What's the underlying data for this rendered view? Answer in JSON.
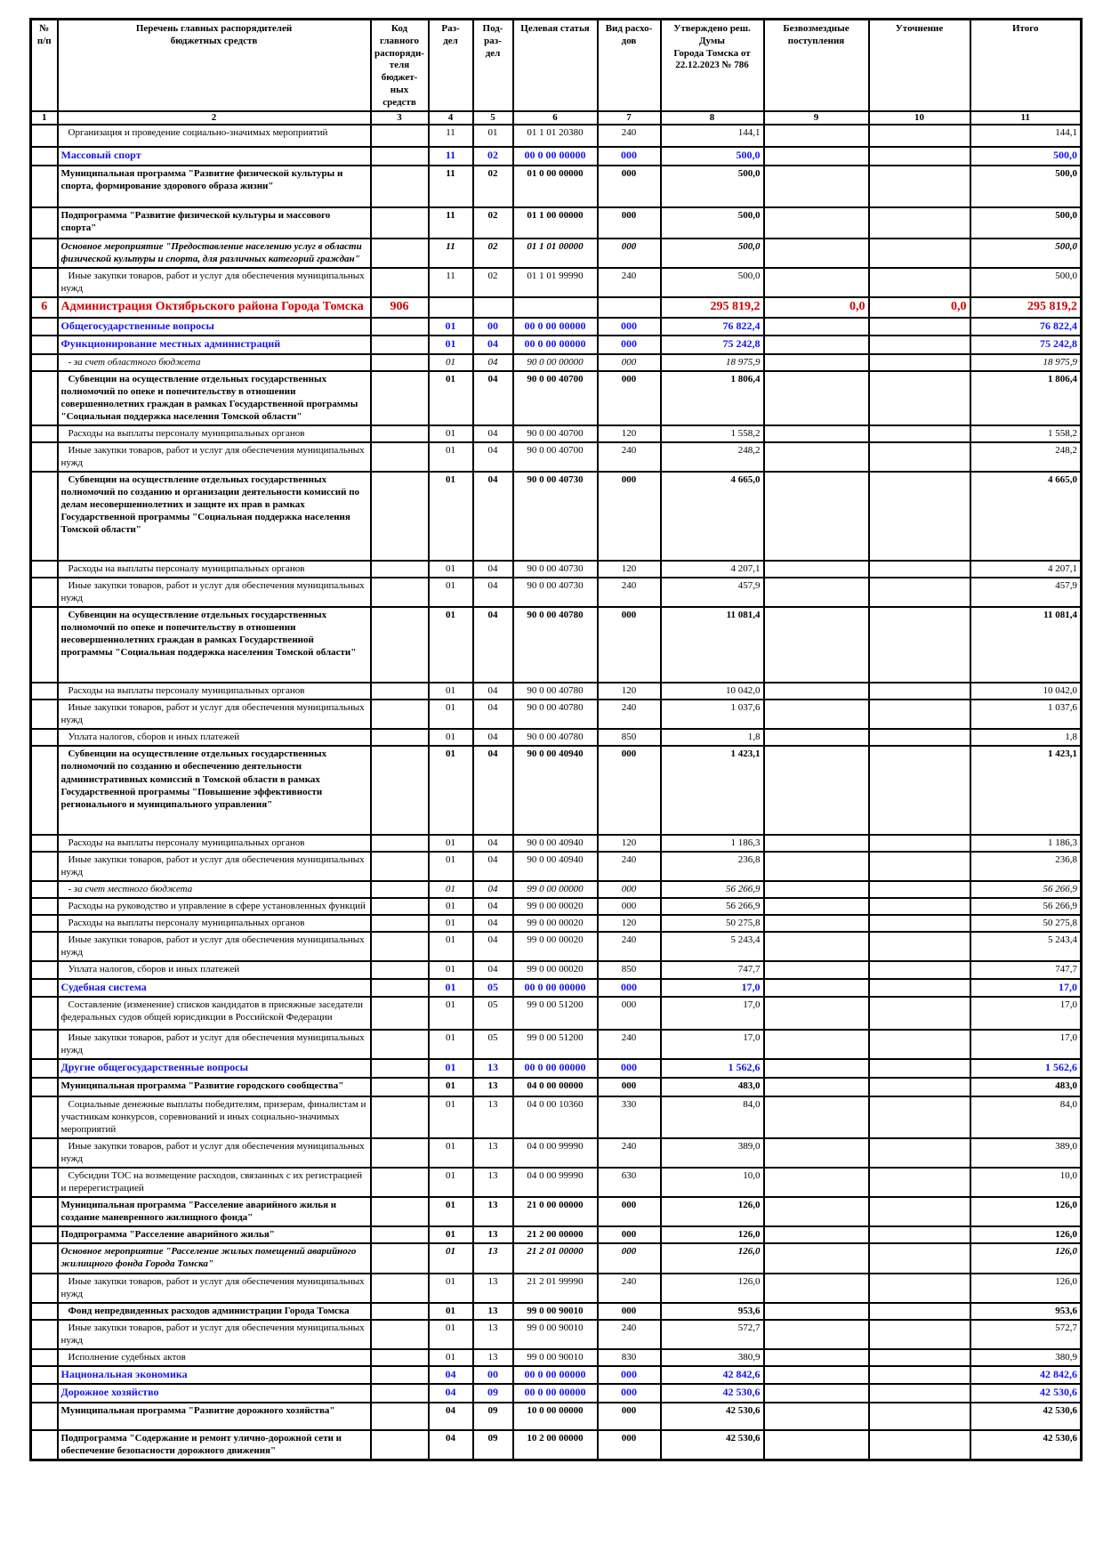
{
  "document": {
    "kind": "municipal budget appropriations table (scanned page)",
    "accent_blue": "#1414ee",
    "accent_red": "#d40000",
    "page_background": "#ffffff"
  },
  "table": {
    "headers": [
      "№\nп/п",
      "Перечень главных распорядителей\nбюджетных средств",
      "Код главного\nраспоряди-\nтеля бюджет-\nных средств",
      "Раз-\nдел",
      "Под-\nраз-\nдел",
      "Целевая статья",
      "Вид расхо-\nдов",
      "Утверждено реш. Думы\nГорода Томска от\n22.12.2023 № 786",
      "Безвозмездные\nпоступления",
      "Уточнение",
      "Итого"
    ],
    "col_numbers": [
      "1",
      "2",
      "3",
      "4",
      "5",
      "6",
      "7",
      "8",
      "9",
      "10",
      "11"
    ],
    "rows": [
      {
        "t": "Организация и проведение социально-значимых мероприятий",
        "rd": "11",
        "pd": "01",
        "ta": "01 1 01 20380",
        "vd": "240",
        "ap": "144,1",
        "tot": "144,1",
        "st": "normal",
        "ind": true,
        "pad": 8
      },
      {
        "t": "Массовый спорт",
        "rd": "11",
        "pd": "02",
        "ta": "00 0 00 00000",
        "vd": "000",
        "ap": "500,0",
        "tot": "500,0",
        "st": "section"
      },
      {
        "t": "Муниципальная программа \"Развитие физической культуры и спорта, формирование здорового образа жизни\"",
        "rd": "11",
        "pd": "02",
        "ta": "01 0 00 00000",
        "vd": "000",
        "ap": "500,0",
        "tot": "500,0",
        "st": "bold",
        "pad": 16
      },
      {
        "t": "Подпрограмма \"Развитие физической культуры и массового спорта\"",
        "rd": "11",
        "pd": "02",
        "ta": "01 1 00 00000",
        "vd": "000",
        "ap": "500,0",
        "tot": "500,0",
        "st": "bold",
        "pad": 4
      },
      {
        "t": "Основное мероприятие \"Предоставление населению услуг в области физической культуры и спорта, для различных категорий граждан\"",
        "rd": "11",
        "pd": "02",
        "ta": "01 1 01 00000",
        "vd": "000",
        "ap": "500,0",
        "tot": "500,0",
        "st": "bold-italic"
      },
      {
        "t": "Иные закупки товаров, работ и услуг для обеспечения муниципальных нужд",
        "rd": "11",
        "pd": "02",
        "ta": "01 1 01 99990",
        "vd": "240",
        "ap": "500,0",
        "tot": "500,0",
        "st": "normal",
        "ind": true
      },
      {
        "n": "6",
        "t": "Администрация Октябрьского района Города Томска",
        "c": "906",
        "ap": "295 819,2",
        "gr": "0,0",
        "cl": "0,0",
        "tot": "295 819,2",
        "st": "org"
      },
      {
        "t": "Общегосударственные вопросы",
        "rd": "01",
        "pd": "00",
        "ta": "00 0 00 00000",
        "vd": "000",
        "ap": "76 822,4",
        "tot": "76 822,4",
        "st": "section"
      },
      {
        "t": "Функционирование местных администраций",
        "rd": "01",
        "pd": "04",
        "ta": "00 0 00 00000",
        "vd": "000",
        "ap": "75 242,8",
        "tot": "75 242,8",
        "st": "section"
      },
      {
        "t": "- за счет областного бюджета",
        "rd": "01",
        "pd": "04",
        "ta": "90 0 00 00000",
        "vd": "000",
        "ap": "18 975,9",
        "tot": "18 975,9",
        "st": "italic",
        "ind": true
      },
      {
        "t": "Субвенции на осуществление отдельных государственных полномочий по опеке и попечительству в отношении совершеннолетних граждан в рамках Государственной программы \"Социальная поддержка населения Томской области\"",
        "rd": "01",
        "pd": "04",
        "ta": "90 0 00 40700",
        "vd": "000",
        "ap": "1 806,4",
        "tot": "1 806,4",
        "st": "bold",
        "ind": true
      },
      {
        "t": "Расходы на выплаты персоналу муниципальных органов",
        "rd": "01",
        "pd": "04",
        "ta": "90 0 00 40700",
        "vd": "120",
        "ap": "1 558,2",
        "tot": "1 558,2",
        "st": "normal",
        "ind": true
      },
      {
        "t": "Иные закупки товаров, работ и услуг для обеспечения муниципальных нужд",
        "rd": "01",
        "pd": "04",
        "ta": "90 0 00 40700",
        "vd": "240",
        "ap": "248,2",
        "tot": "248,2",
        "st": "normal",
        "ind": true
      },
      {
        "t": "Субвенции на осуществление отдельных государственных полномочий по созданию и организации деятельности комиссий по делам несовершеннолетних и защите их прав в рамках Государственной программы \"Социальная поддержка населения Томской области\"",
        "rd": "01",
        "pd": "04",
        "ta": "90 0 00 40730",
        "vd": "000",
        "ap": "4 665,0",
        "tot": "4 665,0",
        "st": "bold",
        "ind": true,
        "pad": 26
      },
      {
        "t": "Расходы на выплаты персоналу муниципальных органов",
        "rd": "01",
        "pd": "04",
        "ta": "90 0 00 40730",
        "vd": "120",
        "ap": "4 207,1",
        "tot": "4 207,1",
        "st": "normal",
        "ind": true
      },
      {
        "t": "Иные закупки товаров, работ и услуг для обеспечения муниципальных нужд",
        "rd": "01",
        "pd": "04",
        "ta": "90 0 00 40730",
        "vd": "240",
        "ap": "457,9",
        "tot": "457,9",
        "st": "normal",
        "ind": true
      },
      {
        "t": "Субвенции на осуществление отдельных государственных полномочий по опеке и попечительству в отношении несовершеннолетних граждан в рамках Государственной программы \"Социальная поддержка населения Томской области\"",
        "rd": "01",
        "pd": "04",
        "ta": "90 0 00 40780",
        "vd": "000",
        "ap": "11 081,4",
        "tot": "11 081,4",
        "st": "bold",
        "ind": true,
        "pad": 26
      },
      {
        "t": "Расходы на выплаты персоналу муниципальных органов",
        "rd": "01",
        "pd": "04",
        "ta": "90 0 00 40780",
        "vd": "120",
        "ap": "10 042,0",
        "tot": "10 042,0",
        "st": "normal",
        "ind": true
      },
      {
        "t": "Иные закупки товаров, работ и услуг для обеспечения муниципальных нужд",
        "rd": "01",
        "pd": "04",
        "ta": "90 0 00 40780",
        "vd": "240",
        "ap": "1 037,6",
        "tot": "1 037,6",
        "st": "normal",
        "ind": true
      },
      {
        "t": "Уплата налогов, сборов и иных платежей",
        "rd": "01",
        "pd": "04",
        "ta": "90 0 00 40780",
        "vd": "850",
        "ap": "1,8",
        "tot": "1,8",
        "st": "normal",
        "ind": true
      },
      {
        "t": "Субвенции на осуществление отдельных государственных полномочий по созданию и обеспечению деятельности административных комиссий в Томской области в рамках Государственной программы \"Повышение эффективности регионального и муниципального управления\"",
        "rd": "01",
        "pd": "04",
        "ta": "90 0 00 40940",
        "vd": "000",
        "ap": "1 423,1",
        "tot": "1 423,1",
        "st": "bold",
        "ind": true,
        "pad": 26
      },
      {
        "t": "Расходы на выплаты персоналу муниципальных органов",
        "rd": "01",
        "pd": "04",
        "ta": "90 0 00 40940",
        "vd": "120",
        "ap": "1 186,3",
        "tot": "1 186,3",
        "st": "normal",
        "ind": true
      },
      {
        "t": "Иные закупки товаров, работ и услуг для обеспечения муниципальных нужд",
        "rd": "01",
        "pd": "04",
        "ta": "90 0 00 40940",
        "vd": "240",
        "ap": "236,8",
        "tot": "236,8",
        "st": "normal",
        "ind": true
      },
      {
        "t": "- за счет местного бюджета",
        "rd": "01",
        "pd": "04",
        "ta": "99 0 00 00000",
        "vd": "000",
        "ap": "56 266,9",
        "tot": "56 266,9",
        "st": "italic",
        "ind": true
      },
      {
        "t": "Расходы на руководство и управление в сфере установленных функций",
        "rd": "01",
        "pd": "04",
        "ta": "99 0 00 00020",
        "vd": "000",
        "ap": "56 266,9",
        "tot": "56 266,9",
        "st": "normal",
        "ind": true
      },
      {
        "t": "Расходы на выплаты персоналу муниципальных органов",
        "rd": "01",
        "pd": "04",
        "ta": "99 0 00 00020",
        "vd": "120",
        "ap": "50 275,8",
        "tot": "50 275,8",
        "st": "normal",
        "ind": true
      },
      {
        "t": "Иные закупки товаров, работ и услуг для обеспечения муниципальных нужд",
        "rd": "01",
        "pd": "04",
        "ta": "99 0 00 00020",
        "vd": "240",
        "ap": "5 243,4",
        "tot": "5 243,4",
        "st": "normal",
        "ind": true
      },
      {
        "t": "Уплата налогов, сборов и иных платежей",
        "rd": "01",
        "pd": "04",
        "ta": "99 0 00 00020",
        "vd": "850",
        "ap": "747,7",
        "tot": "747,7",
        "st": "normal",
        "ind": true
      },
      {
        "t": "Судебная система",
        "rd": "01",
        "pd": "05",
        "ta": "00 0 00 00000",
        "vd": "000",
        "ap": "17,0",
        "tot": "17,0",
        "st": "section"
      },
      {
        "t": "Составление (изменение) списков кандидатов в присяжные заседатели федеральных судов общей юрисдикции в Российской Федерации",
        "rd": "01",
        "pd": "05",
        "ta": "99 0 00 51200",
        "vd": "000",
        "ap": "17,0",
        "tot": "17,0",
        "st": "normal",
        "ind": true,
        "pad": 6
      },
      {
        "t": "Иные закупки товаров, работ и услуг для обеспечения муниципальных нужд",
        "rd": "01",
        "pd": "05",
        "ta": "99 0 00 51200",
        "vd": "240",
        "ap": "17,0",
        "tot": "17,0",
        "st": "normal",
        "ind": true
      },
      {
        "t": "Другие общегосударственные вопросы",
        "rd": "01",
        "pd": "13",
        "ta": "00 0 00 00000",
        "vd": "000",
        "ap": "1 562,6",
        "tot": "1 562,6",
        "st": "section"
      },
      {
        "t": "Муниципальная программа \"Развитие городского сообщества\"",
        "rd": "01",
        "pd": "13",
        "ta": "04 0 00 00000",
        "vd": "000",
        "ap": "483,0",
        "tot": "483,0",
        "st": "bold",
        "pad": 4
      },
      {
        "t": "Социальные денежные выплаты победителям, призерам, финалистам и участникам конкурсов, соревнований и иных социально-значимых мероприятий",
        "rd": "01",
        "pd": "13",
        "ta": "04 0 00 10360",
        "vd": "330",
        "ap": "84,0",
        "tot": "84,0",
        "st": "normal",
        "ind": true
      },
      {
        "t": "Иные закупки товаров, работ и услуг для обеспечения муниципальных нужд",
        "rd": "01",
        "pd": "13",
        "ta": "04 0 00 99990",
        "vd": "240",
        "ap": "389,0",
        "tot": "389,0",
        "st": "normal",
        "ind": true
      },
      {
        "t": "Субсидии ТОС на возмещение расходов, связанных с их регистрацией и перерегистрацией",
        "rd": "01",
        "pd": "13",
        "ta": "04 0 00 99990",
        "vd": "630",
        "ap": "10,0",
        "tot": "10,0",
        "st": "normal",
        "ind": true
      },
      {
        "t": "Муниципальная программа \"Расселение аварийного жилья и создание маневренного жилищного фонда\"",
        "rd": "01",
        "pd": "13",
        "ta": "21 0 00 00000",
        "vd": "000",
        "ap": "126,0",
        "tot": "126,0",
        "st": "bold"
      },
      {
        "t": "Подпрограмма \"Расселение аварийного жилья\"",
        "rd": "01",
        "pd": "13",
        "ta": "21 2 00 00000",
        "vd": "000",
        "ap": "126,0",
        "tot": "126,0",
        "st": "bold"
      },
      {
        "t": "Основное мероприятие \"Расселение жилых помещений аварийного жилищного фонда Города Томска\"",
        "rd": "01",
        "pd": "13",
        "ta": "21 2 01 00000",
        "vd": "000",
        "ap": "126,0",
        "tot": "126,0",
        "st": "bold-italic"
      },
      {
        "t": "Иные закупки товаров, работ и услуг для обеспечения муниципальных нужд",
        "rd": "01",
        "pd": "13",
        "ta": "21 2 01 99990",
        "vd": "240",
        "ap": "126,0",
        "tot": "126,0",
        "st": "normal",
        "ind": true
      },
      {
        "t": "Фонд непредвиденных расходов администрации Города Томска",
        "rd": "01",
        "pd": "13",
        "ta": "99 0 00 90010",
        "vd": "000",
        "ap": "953,6",
        "tot": "953,6",
        "st": "bold",
        "ind": true
      },
      {
        "t": "Иные закупки товаров, работ и услуг для обеспечения муниципальных нужд",
        "rd": "01",
        "pd": "13",
        "ta": "99 0 00 90010",
        "vd": "240",
        "ap": "572,7",
        "tot": "572,7",
        "st": "normal",
        "ind": true
      },
      {
        "t": "Исполнение судебных актов",
        "rd": "01",
        "pd": "13",
        "ta": "99 0 00 90010",
        "vd": "830",
        "ap": "380,9",
        "tot": "380,9",
        "st": "normal",
        "ind": true
      },
      {
        "t": "Национальная экономика",
        "rd": "04",
        "pd": "00",
        "ta": "00 0 00 00000",
        "vd": "000",
        "ap": "42 842,6",
        "tot": "42 842,6",
        "st": "section"
      },
      {
        "t": "Дорожное хозяйство",
        "rd": "04",
        "pd": "09",
        "ta": "00 0 00 00000",
        "vd": "000",
        "ap": "42 530,6",
        "tot": "42 530,6",
        "st": "section"
      },
      {
        "t": "Муниципальная программа \"Развитие дорожного хозяйства\"",
        "rd": "04",
        "pd": "09",
        "ta": "10 0 00 00000",
        "vd": "000",
        "ap": "42 530,6",
        "tot": "42 530,6",
        "st": "bold",
        "pad": 14
      },
      {
        "t": "Подпрограмма \"Содержание и ремонт улично-дорожной сети и обеспечение безопасности дорожного движения\"",
        "rd": "04",
        "pd": "09",
        "ta": "10 2 00 00000",
        "vd": "000",
        "ap": "42 530,6",
        "tot": "42 530,6",
        "st": "bold"
      }
    ]
  }
}
